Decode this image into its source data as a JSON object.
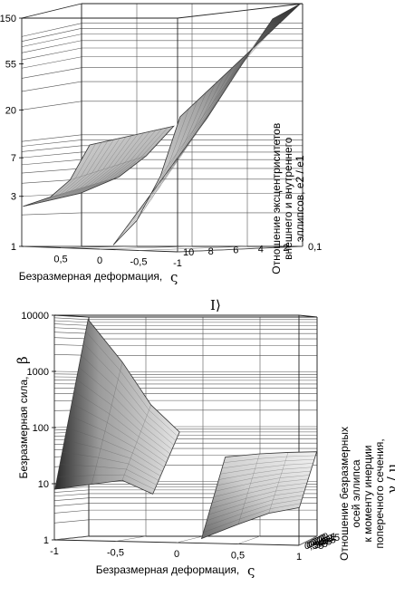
{
  "chart_data": [
    {
      "type": "surface3d",
      "ylabel": "Безразмерная сила,",
      "ylabel_symbol": "β",
      "xlabel": "Безразмерная деформация,",
      "xlabel_symbol": "ς",
      "zlabel_lines": [
        "Отношение эксцентриситетов",
        "внешнего и внутреннего",
        "эллипсов, e2 / e1"
      ],
      "y_scale": "log",
      "y_ticks": [
        "1",
        "3",
        "7",
        "20",
        "55",
        "150"
      ],
      "x_ticks": [
        "0,5",
        "0",
        "-0,5",
        "-1"
      ],
      "z_ticks": [
        "0,1",
        "2",
        "4",
        "6",
        "8",
        "10"
      ],
      "x_range": [
        1,
        -1
      ],
      "y_range": [
        1,
        150
      ],
      "z_range": [
        0.1,
        10
      ],
      "grid": true,
      "surfaces": [
        {
          "x": [
            1.0,
            0.65,
            0.4,
            0.15
          ],
          "y_at_z_near": [
            2.4,
            3.0,
            4.4,
            9.5
          ],
          "y_at_z_far": [
            3.0,
            4.2,
            6.5,
            12
          ]
        },
        {
          "x": [
            -0.15,
            -0.45,
            -0.75,
            -1.0
          ],
          "y_at_z_near": [
            1.1,
            1.9,
            5,
            18
          ],
          "y_at_z_far": [
            14,
            40,
            110,
            150
          ]
        }
      ]
    },
    {
      "type": "surface3d",
      "ylabel": "Безразмерная сила,",
      "ylabel_symbol": "β",
      "xlabel": "Безразмерная деформация,",
      "xlabel_symbol": "ς",
      "zlabel_lines": [
        "Отношение безразмерных",
        "осей эллипса",
        "к моменту инерции",
        "поперечного сечения,"
      ],
      "zlabel_symbol": "γ / μ",
      "y_scale": "log",
      "y_ticks": [
        "1",
        "10",
        "100",
        "1000",
        "10000"
      ],
      "x_ticks": [
        "-1",
        "-0,5",
        "0",
        "0,5",
        "1"
      ],
      "z_ticks": [
        "0,1",
        "0,15",
        "0,2",
        "0,25",
        "0,3",
        "0,35",
        "0,4",
        "0,45",
        "0,5",
        "0,55"
      ],
      "x_range": [
        -1,
        1
      ],
      "y_range": [
        1,
        10000
      ],
      "z_range": [
        0.1,
        0.55
      ],
      "grid": true,
      "surfaces": [
        {
          "x": [
            -1.0,
            -0.7,
            -0.45,
            -0.2
          ],
          "y_at_z_near": [
            8,
            10,
            12,
            7
          ],
          "y_at_z_far": [
            9000,
            1500,
            250,
            80
          ]
        },
        {
          "x": [
            0.2,
            0.5,
            0.75,
            1.0
          ],
          "y_at_z_near": [
            1.2,
            2.2,
            3.5,
            4.5
          ],
          "y_at_z_far": [
            28,
            32,
            34,
            35
          ]
        }
      ]
    }
  ],
  "caption_top": "I",
  "caption_mark": "⟩"
}
